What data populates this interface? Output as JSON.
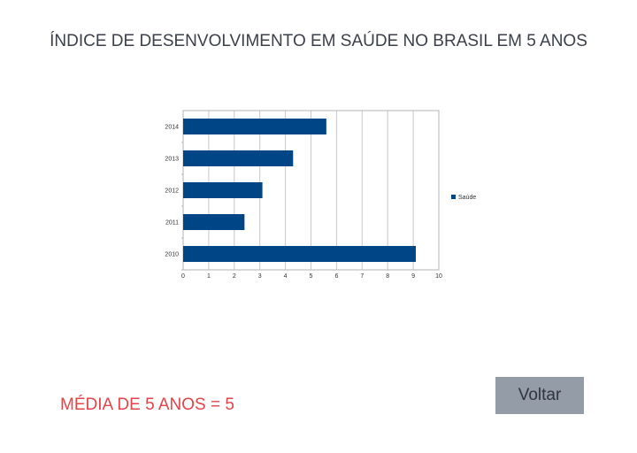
{
  "page": {
    "title": "ÍNDICE DE DESENVOLVIMENTO EM SAÚDE NO BRASIL EM 5 ANOS",
    "average_text": "MÉDIA DE 5 ANOS = 5",
    "back_label": "Voltar"
  },
  "chart_data": {
    "type": "bar",
    "orientation": "horizontal",
    "categories": [
      "2010",
      "2011",
      "2012",
      "2013",
      "2014"
    ],
    "series": [
      {
        "name": "Saúde",
        "values": [
          9.1,
          2.4,
          3.1,
          4.3,
          5.6
        ],
        "color": "#004586"
      }
    ],
    "xlim": [
      0,
      10
    ],
    "xticks": [
      "0",
      "1",
      "2",
      "3",
      "4",
      "5",
      "6",
      "7",
      "8",
      "9",
      "10"
    ],
    "grid": true,
    "legend_position": "right"
  }
}
